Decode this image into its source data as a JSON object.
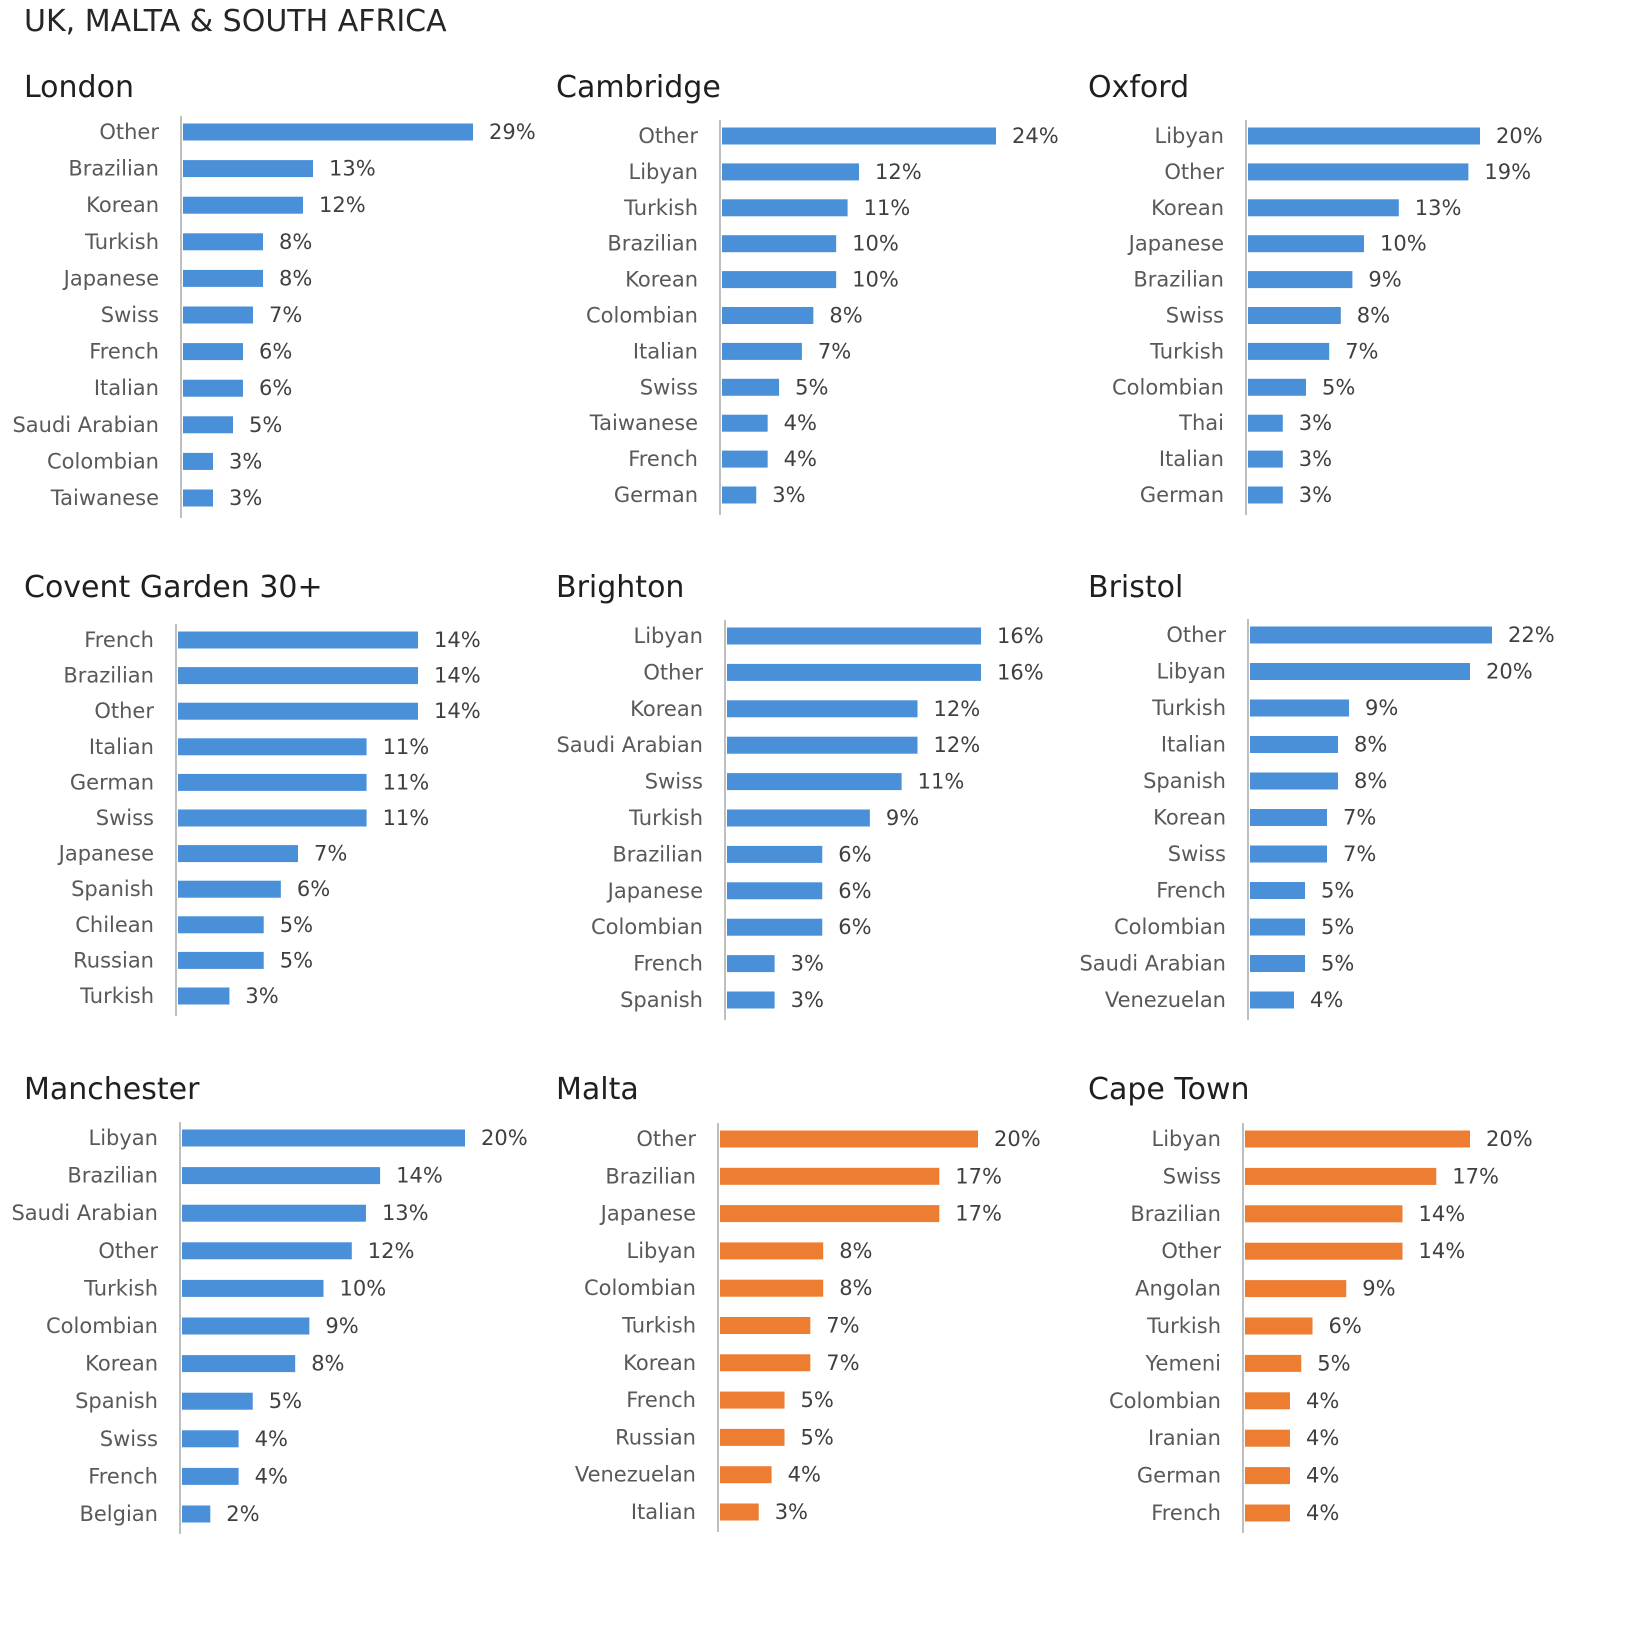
{
  "page": {
    "title": "UK, MALTA & SOUTH AFRICA"
  },
  "colors": {
    "blue": "#4a90d9",
    "orange": "#ed7d31",
    "axis": "#bfbfbf"
  },
  "chart_data": [
    {
      "type": "bar",
      "orientation": "horizontal",
      "title": "London",
      "color": "blue",
      "xlim": [
        0,
        29
      ],
      "categories": [
        "Other",
        "Brazilian",
        "Korean",
        "Turkish",
        "Japanese",
        "Swiss",
        "French",
        "Italian",
        "Saudi Arabian",
        "Colombian",
        "Taiwanese"
      ],
      "values": [
        29,
        13,
        12,
        8,
        8,
        7,
        6,
        6,
        5,
        3,
        3
      ],
      "labels": [
        "29%",
        "13%",
        "12%",
        "8%",
        "8%",
        "7%",
        "6%",
        "6%",
        "5%",
        "3%",
        "3%"
      ]
    },
    {
      "type": "bar",
      "orientation": "horizontal",
      "title": "Cambridge",
      "color": "blue",
      "xlim": [
        0,
        24
      ],
      "categories": [
        "Other",
        "Libyan",
        "Turkish",
        "Brazilian",
        "Korean",
        "Colombian",
        "Italian",
        "Swiss",
        "Taiwanese",
        "French",
        "German"
      ],
      "values": [
        24,
        12,
        11,
        10,
        10,
        8,
        7,
        5,
        4,
        4,
        3
      ],
      "labels": [
        "24%",
        "12%",
        "11%",
        "10%",
        "10%",
        "8%",
        "7%",
        "5%",
        "4%",
        "4%",
        "3%"
      ]
    },
    {
      "type": "bar",
      "orientation": "horizontal",
      "title": "Oxford",
      "color": "blue",
      "xlim": [
        0,
        20
      ],
      "categories": [
        "Libyan",
        "Other",
        "Korean",
        "Japanese",
        "Brazilian",
        "Swiss",
        "Turkish",
        "Colombian",
        "Thai",
        "Italian",
        "German"
      ],
      "values": [
        20,
        19,
        13,
        10,
        9,
        8,
        7,
        5,
        3,
        3,
        3
      ],
      "labels": [
        "20%",
        "19%",
        "13%",
        "10%",
        "9%",
        "8%",
        "7%",
        "5%",
        "3%",
        "3%",
        "3%"
      ]
    },
    {
      "type": "bar",
      "orientation": "horizontal",
      "title": "Covent Garden 30+",
      "color": "blue",
      "xlim": [
        0,
        14
      ],
      "categories": [
        "French",
        "Brazilian",
        "Other",
        "Italian",
        "German",
        "Swiss",
        "Japanese",
        "Spanish",
        "Chilean",
        "Russian",
        "Turkish"
      ],
      "values": [
        14,
        14,
        14,
        11,
        11,
        11,
        7,
        6,
        5,
        5,
        3
      ],
      "labels": [
        "14%",
        "14%",
        "14%",
        "11%",
        "11%",
        "11%",
        "7%",
        "6%",
        "5%",
        "5%",
        "3%"
      ]
    },
    {
      "type": "bar",
      "orientation": "horizontal",
      "title": "Brighton",
      "color": "blue",
      "xlim": [
        0,
        16
      ],
      "categories": [
        "Libyan",
        "Other",
        "Korean",
        "Saudi Arabian",
        "Swiss",
        "Turkish",
        "Brazilian",
        "Japanese",
        "Colombian",
        "French",
        "Spanish"
      ],
      "values": [
        16,
        16,
        12,
        12,
        11,
        9,
        6,
        6,
        6,
        3,
        3
      ],
      "labels": [
        "16%",
        "16%",
        "12%",
        "12%",
        "11%",
        "9%",
        "6%",
        "6%",
        "6%",
        "3%",
        "3%"
      ]
    },
    {
      "type": "bar",
      "orientation": "horizontal",
      "title": "Bristol",
      "color": "blue",
      "xlim": [
        0,
        22
      ],
      "categories": [
        "Other",
        "Libyan",
        "Turkish",
        "Italian",
        "Spanish",
        "Korean",
        "Swiss",
        "French",
        "Colombian",
        "Saudi Arabian",
        "Venezuelan"
      ],
      "values": [
        22,
        20,
        9,
        8,
        8,
        7,
        7,
        5,
        5,
        5,
        4
      ],
      "labels": [
        "22%",
        "20%",
        "9%",
        "8%",
        "8%",
        "7%",
        "7%",
        "5%",
        "5%",
        "5%",
        "4%"
      ]
    },
    {
      "type": "bar",
      "orientation": "horizontal",
      "title": "Manchester",
      "color": "blue",
      "xlim": [
        0,
        20
      ],
      "categories": [
        "Libyan",
        "Brazilian",
        "Saudi Arabian",
        "Other",
        "Turkish",
        "Colombian",
        "Korean",
        "Spanish",
        "Swiss",
        "French",
        "Belgian"
      ],
      "values": [
        20,
        14,
        13,
        12,
        10,
        9,
        8,
        5,
        4,
        4,
        2
      ],
      "labels": [
        "20%",
        "14%",
        "13%",
        "12%",
        "10%",
        "9%",
        "8%",
        "5%",
        "4%",
        "4%",
        "2%"
      ]
    },
    {
      "type": "bar",
      "orientation": "horizontal",
      "title": "Malta",
      "color": "orange",
      "xlim": [
        0,
        20
      ],
      "categories": [
        "Other",
        "Brazilian",
        "Japanese",
        "Libyan",
        "Colombian",
        "Turkish",
        "Korean",
        "French",
        "Russian",
        "Venezuelan",
        "Italian"
      ],
      "values": [
        20,
        17,
        17,
        8,
        8,
        7,
        7,
        5,
        5,
        4,
        3
      ],
      "labels": [
        "20%",
        "17%",
        "17%",
        "8%",
        "8%",
        "7%",
        "7%",
        "5%",
        "5%",
        "4%",
        "3%"
      ]
    },
    {
      "type": "bar",
      "orientation": "horizontal",
      "title": "Cape Town",
      "color": "orange",
      "xlim": [
        0,
        20
      ],
      "categories": [
        "Libyan",
        "Swiss",
        "Brazilian",
        "Other",
        "Angolan",
        "Turkish",
        "Yemeni",
        "Colombian",
        "Iranian",
        "German",
        "French"
      ],
      "values": [
        20,
        17,
        14,
        14,
        9,
        6,
        5,
        4,
        4,
        4,
        4
      ],
      "labels": [
        "20%",
        "17%",
        "14%",
        "14%",
        "9%",
        "6%",
        "5%",
        "4%",
        "4%",
        "4%",
        "4%"
      ]
    }
  ]
}
